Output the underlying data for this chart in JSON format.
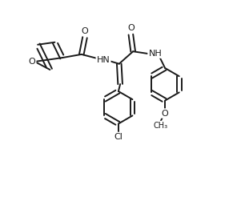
{
  "bg_color": "#ffffff",
  "bond_color": "#1a1a1a",
  "bond_width": 1.4,
  "dpi": 100,
  "figsize": [
    3.11,
    2.56
  ],
  "xlim": [
    -1.5,
    8.5
  ],
  "ylim": [
    -5.5,
    3.5
  ]
}
